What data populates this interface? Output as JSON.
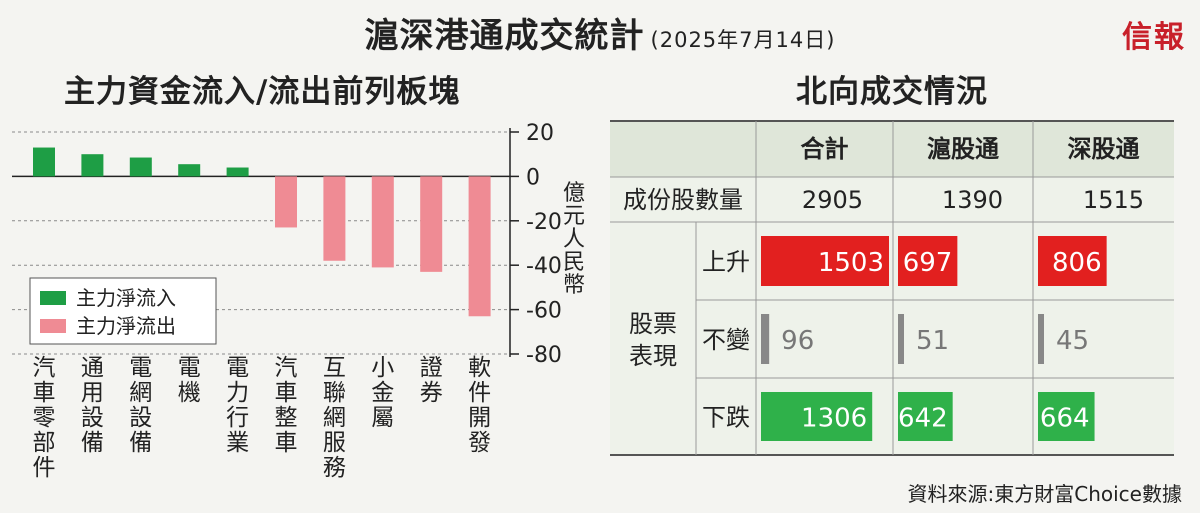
{
  "header": {
    "title": "滬深港通成交統計",
    "date": "(2025年7月14日)",
    "brand": "信報"
  },
  "colors": {
    "inflow": "#1e9e45",
    "outflow": "#ef8b94",
    "up": "#e2201f",
    "down": "#2fb14a",
    "flat": "#888888",
    "table_header_bg": "#dfe6d9",
    "table_body_bg": "#eef2ea"
  },
  "chart_data": {
    "type": "bar",
    "title": "主力資金流入/流出前列板塊",
    "categories": [
      "汽車零部件",
      "通用設備",
      "電網設備",
      "電機",
      "電力行業",
      "汽車整車",
      "互聯網服務",
      "小金屬",
      "證券",
      "軟件開發"
    ],
    "series": [
      {
        "name": "主力淨流入",
        "values": [
          13,
          10,
          8.5,
          5.5,
          4,
          null,
          null,
          null,
          null,
          null
        ]
      },
      {
        "name": "主力淨流出",
        "values": [
          null,
          null,
          null,
          null,
          null,
          -23,
          -38,
          -41,
          -43,
          -63
        ]
      }
    ],
    "ylabel": "億元人民幣",
    "ylim": [
      -80,
      20
    ],
    "yticks": [
      20,
      0,
      -20,
      -40,
      -60,
      -80
    ],
    "grid": true,
    "legend_placement": "lower-left"
  },
  "table": {
    "title": "北向成交情況",
    "columns": [
      "合計",
      "滬股通",
      "深股通"
    ],
    "count_label": "成份股數量",
    "counts": [
      "2905",
      "1390",
      "1515"
    ],
    "group_label": "股票表現",
    "rows": [
      {
        "label": "上升",
        "values": [
          1503,
          697,
          806
        ],
        "kind": "up"
      },
      {
        "label": "不變",
        "values": [
          96,
          51,
          45
        ],
        "kind": "flat"
      },
      {
        "label": "下跌",
        "values": [
          1306,
          642,
          664
        ],
        "kind": "down"
      }
    ]
  },
  "source": "資料來源:東方財富Choice數據"
}
